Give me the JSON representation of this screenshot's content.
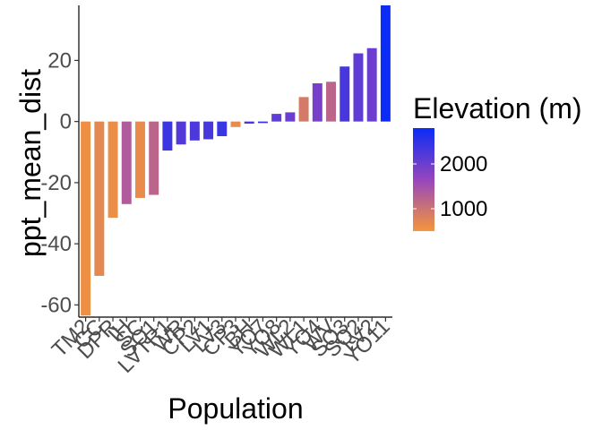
{
  "chart_data": {
    "type": "bar",
    "xlabel": "Population",
    "ylabel": "ppt_mean_dist",
    "ylim": [
      -64,
      38
    ],
    "yticks": [
      -60,
      -40,
      -20,
      0,
      20
    ],
    "grid": false,
    "legend": {
      "title": "Elevation (m)",
      "placement": "right",
      "ticks": [
        1000,
        2000
      ],
      "range": [
        500,
        2800
      ],
      "color_low": "#f5963a",
      "color_high": "#0a2cf5"
    },
    "categories": [
      "TM2",
      "CC",
      "DPR",
      "IH",
      "SC",
      "SQ1",
      "LVTR1",
      "WR",
      "CP2",
      "LV1",
      "LV3",
      "CP3",
      "BH",
      "YO7",
      "YO8",
      "WL2",
      "WL1",
      "YO4",
      "WV",
      "SQ3",
      "SQ2",
      "LV2",
      "YO11"
    ],
    "values": [
      -63.5,
      -50.5,
      -31.5,
      -27,
      -25,
      -24,
      -9.5,
      -7.5,
      -6.2,
      -5.8,
      -4.8,
      -1.8,
      -0.7,
      -0.5,
      2.5,
      3,
      8,
      12.5,
      13,
      18,
      22.3,
      24,
      38
    ],
    "elevations": [
      580,
      700,
      620,
      1350,
      650,
      1200,
      2400,
      2200,
      2250,
      2300,
      2400,
      650,
      2300,
      2450,
      2100,
      2000,
      900,
      1900,
      1200,
      2300,
      2100,
      2000,
      2800
    ]
  }
}
